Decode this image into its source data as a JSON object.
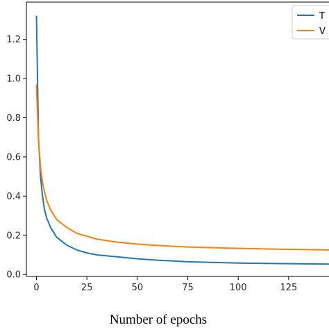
{
  "chart_data": {
    "type": "line",
    "title": "",
    "xlabel": "Number of epochs",
    "ylabel": "",
    "xlim": [
      -5,
      145
    ],
    "ylim": [
      -0.01,
      1.39
    ],
    "x_ticks": [
      0,
      25,
      50,
      75,
      100,
      125
    ],
    "x_tick_labels": [
      "0",
      "25",
      "50",
      "75",
      "100",
      "125"
    ],
    "y_ticks": [
      0.0,
      0.2,
      0.4,
      0.6,
      0.8,
      1.0,
      1.2
    ],
    "y_tick_labels": [
      "0.0",
      "0.2",
      "0.4",
      "0.6",
      "0.8",
      "1.0",
      "1.2"
    ],
    "grid": false,
    "legend_position": "top-right",
    "series": [
      {
        "name": "T",
        "color": "#1f77b4",
        "x": [
          0,
          1,
          2,
          3,
          4,
          5,
          7,
          10,
          15,
          20,
          25,
          30,
          40,
          50,
          60,
          75,
          100,
          125,
          145
        ],
        "y": [
          1.32,
          0.7,
          0.5,
          0.4,
          0.33,
          0.29,
          0.24,
          0.19,
          0.15,
          0.125,
          0.11,
          0.1,
          0.09,
          0.08,
          0.073,
          0.065,
          0.058,
          0.055,
          0.053
        ]
      },
      {
        "name": "V",
        "color": "#ff7f0e",
        "x": [
          0,
          1,
          2,
          3,
          4,
          5,
          7,
          10,
          15,
          20,
          25,
          30,
          40,
          50,
          60,
          75,
          100,
          125,
          145
        ],
        "y": [
          0.97,
          0.68,
          0.55,
          0.47,
          0.42,
          0.38,
          0.33,
          0.28,
          0.24,
          0.21,
          0.195,
          0.18,
          0.165,
          0.155,
          0.148,
          0.14,
          0.133,
          0.128,
          0.125
        ]
      }
    ]
  }
}
